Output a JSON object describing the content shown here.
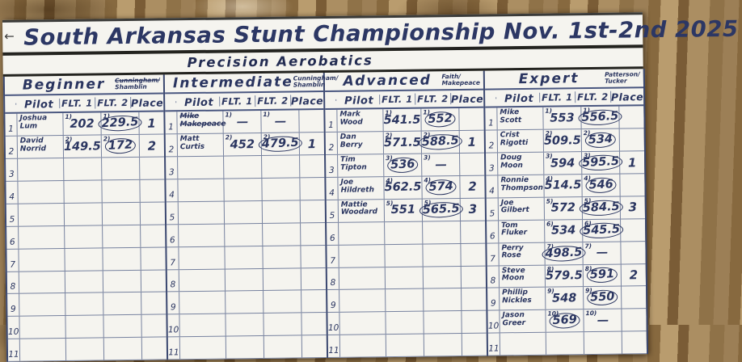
{
  "title": "South Arkansas Stunt Championship Nov. 1st-2nd 2025",
  "subtitle": "Precision  Aerobatics",
  "arrow": "←",
  "columns": {
    "num": "",
    "pilot": "Pilot",
    "flt1": "FLT. 1",
    "flt2": "FLT. 2",
    "place": "Place"
  },
  "accent_ink": "#2a3560",
  "sections": [
    {
      "name": "Beginner",
      "judges_line1": "Cunningham/",
      "judges_line2": "Shamblin",
      "judges_line1_struck": true,
      "rows": [
        {
          "num": "1",
          "pilot": "Joshua Lum",
          "flt1": "202",
          "flt1_sup": "1)",
          "flt2": "229.5",
          "flt2_sup": "1)",
          "flt2_circled": true,
          "place": "1"
        },
        {
          "num": "2",
          "pilot": "David Norrid",
          "flt1": "149.5",
          "flt1_sup": "2)",
          "flt2": "172",
          "flt2_sup": "2)",
          "flt2_circled": true,
          "place": "2"
        },
        {
          "num": "3"
        },
        {
          "num": "4"
        },
        {
          "num": "5"
        },
        {
          "num": "6"
        },
        {
          "num": "7"
        },
        {
          "num": "8"
        },
        {
          "num": "9"
        },
        {
          "num": "10"
        },
        {
          "num": "11"
        }
      ]
    },
    {
      "name": "Intermediate",
      "judges_line1": "Cunningham/",
      "judges_line2": "Shamblin",
      "judges_line1_struck": false,
      "rows": [
        {
          "num": "1",
          "pilot": "Mike Makepeace",
          "pilot_struck": true,
          "flt1": "—",
          "flt1_sup": "1)",
          "flt2": "—",
          "flt2_sup": "1)"
        },
        {
          "num": "2",
          "pilot": "Matt Curtis",
          "flt1": "452",
          "flt1_sup": "2)",
          "flt2": "479.5",
          "flt2_sup": "2)",
          "flt2_circled": true,
          "place": "1"
        },
        {
          "num": "3"
        },
        {
          "num": "4"
        },
        {
          "num": "5"
        },
        {
          "num": "6"
        },
        {
          "num": "7"
        },
        {
          "num": "8"
        },
        {
          "num": "9"
        },
        {
          "num": "10"
        },
        {
          "num": "11"
        }
      ]
    },
    {
      "name": "Advanced",
      "judges_line1": "Faith/",
      "judges_line2": "Makepeace",
      "judges_line1_struck": false,
      "rows": [
        {
          "num": "1",
          "pilot": "Mark Wood",
          "flt1": "541.5",
          "flt1_sup": "1)",
          "flt2": "552",
          "flt2_sup": "1)",
          "flt2_circled": true
        },
        {
          "num": "2",
          "pilot": "Dan Berry",
          "flt1": "571.5",
          "flt1_sup": "2)",
          "flt2": "588.5",
          "flt2_sup": "2)",
          "flt2_circled": true,
          "place": "1"
        },
        {
          "num": "3",
          "pilot": "Tim Tipton",
          "flt1": "536",
          "flt1_sup": "3)",
          "flt1_circled": true,
          "flt2": "—",
          "flt2_sup": "3)"
        },
        {
          "num": "4",
          "pilot": "Joe Hildreth",
          "flt1": "562.5",
          "flt1_sup": "4)",
          "flt2": "574",
          "flt2_sup": "4)",
          "flt2_circled": true,
          "place": "2"
        },
        {
          "num": "5",
          "pilot": "Mattie Woodard",
          "flt1": "551",
          "flt1_sup": "5)",
          "flt2": "565.5",
          "flt2_sup": "5)",
          "flt2_circled": true,
          "place": "3"
        },
        {
          "num": "6"
        },
        {
          "num": "7"
        },
        {
          "num": "8"
        },
        {
          "num": "9"
        },
        {
          "num": "10"
        },
        {
          "num": "11"
        }
      ]
    },
    {
      "name": "Expert",
      "judges_line1": "Patterson/",
      "judges_line2": "Tucker",
      "judges_line1_struck": false,
      "rows": [
        {
          "num": "1",
          "pilot": "Mike Scott",
          "flt1": "553",
          "flt1_sup": "1)",
          "flt2": "556.5",
          "flt2_sup": "1)",
          "flt2_circled": true
        },
        {
          "num": "2",
          "pilot": "Crist Rigotti",
          "flt1": "509.5",
          "flt1_sup": "2)",
          "flt2": "534",
          "flt2_sup": "2)",
          "flt2_circled": true
        },
        {
          "num": "3",
          "pilot": "Doug Moon",
          "flt1": "594",
          "flt1_sup": "3)",
          "flt2": "595.5",
          "flt2_sup": "3)",
          "flt2_circled": true,
          "place": "1"
        },
        {
          "num": "4",
          "pilot": "Ronnie Thompson",
          "flt1": "514.5",
          "flt1_sup": "4)",
          "flt2": "546",
          "flt2_sup": "4)",
          "flt2_circled": true
        },
        {
          "num": "5",
          "pilot": "Joe Gilbert",
          "flt1": "572",
          "flt1_sup": "5)",
          "flt2": "584.5",
          "flt2_sup": "5)",
          "flt2_circled": true,
          "place": "3"
        },
        {
          "num": "6",
          "pilot": "Tom Fluker",
          "flt1": "534",
          "flt1_sup": "6)",
          "flt2": "545.5",
          "flt2_sup": "6)",
          "flt2_circled": true
        },
        {
          "num": "7",
          "pilot": "Perry Rose",
          "flt1": "498.5",
          "flt1_sup": "7)",
          "flt1_circled": true,
          "flt2": "—",
          "flt2_sup": "7)"
        },
        {
          "num": "8",
          "pilot": "Steve Moon",
          "flt1": "579.5",
          "flt1_sup": "8)",
          "flt2": "591",
          "flt2_sup": "8)",
          "flt2_circled": true,
          "place": "2"
        },
        {
          "num": "9",
          "pilot": "Phillip Nickles",
          "flt1": "548",
          "flt1_sup": "9)",
          "flt2": "550",
          "flt2_sup": "9)",
          "flt2_circled": true
        },
        {
          "num": "10",
          "pilot": "Jason Greer",
          "flt1": "569",
          "flt1_sup": "10)",
          "flt1_circled": true,
          "flt2": "—",
          "flt2_sup": "10)"
        },
        {
          "num": "11"
        }
      ]
    }
  ]
}
